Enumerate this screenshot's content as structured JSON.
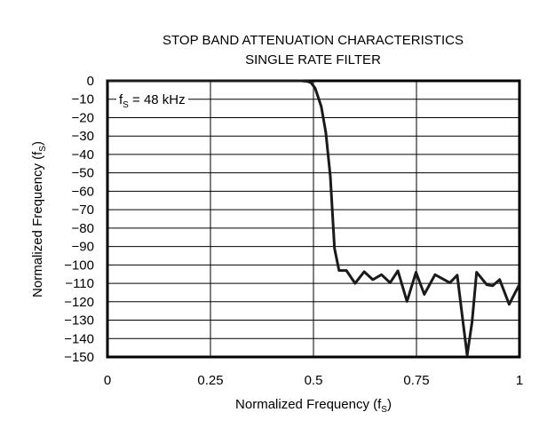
{
  "chart_data": {
    "type": "line",
    "title": "STOP BAND ATTENUATION CHARACTERISTICS",
    "subtitle": "SINGLE RATE FILTER",
    "xlabel": "Normalized Frequency (f",
    "xlabel_sub": "S",
    "xlabel_end": ")",
    "ylabel": "Normalized Frequency (f",
    "ylabel_sub": "S",
    "ylabel_end": ")",
    "annotation": "f",
    "annotation_sub": "S",
    "annotation_end": " = 48 kHz",
    "xlim": [
      0,
      1
    ],
    "ylim": [
      -150,
      0
    ],
    "xticks": [
      0,
      0.25,
      0.5,
      0.75,
      1
    ],
    "xtick_labels": [
      "0",
      "0.25",
      "0.5",
      "0.75",
      "1"
    ],
    "yticks": [
      0,
      -10,
      -20,
      -30,
      -40,
      -50,
      -60,
      -70,
      -80,
      -90,
      -100,
      -110,
      -120,
      -130,
      -140,
      -150
    ],
    "ytick_labels": [
      "0",
      "−10",
      "−20",
      "−30",
      "−40",
      "−50",
      "−60",
      "−70",
      "−80",
      "−90",
      "−100",
      "−110",
      "−120",
      "−130",
      "−140",
      "−150"
    ],
    "grid": true,
    "line_color": "#1a1a1a",
    "series": [
      {
        "x": [
          0,
          0.47,
          0.485,
          0.494,
          0.504,
          0.519,
          0.53,
          0.541,
          0.551,
          0.562,
          0.58,
          0.601,
          0.623,
          0.644,
          0.665,
          0.686,
          0.705,
          0.727,
          0.749,
          0.769,
          0.795,
          0.831,
          0.849,
          0.864,
          0.873,
          0.885,
          0.896,
          0.921,
          0.935,
          0.952,
          0.975,
          1.0
        ],
        "y": [
          0,
          0,
          -0.3,
          -1,
          -4,
          -14,
          -28,
          -52,
          -91,
          -103,
          -103,
          -110,
          -103.7,
          -108,
          -105.3,
          -109.7,
          -103.2,
          -119.8,
          -104,
          -116,
          -105.3,
          -109.7,
          -105.6,
          -133,
          -149,
          -131,
          -104,
          -110.8,
          -111.3,
          -108,
          -121.4,
          -110.5
        ]
      }
    ]
  }
}
